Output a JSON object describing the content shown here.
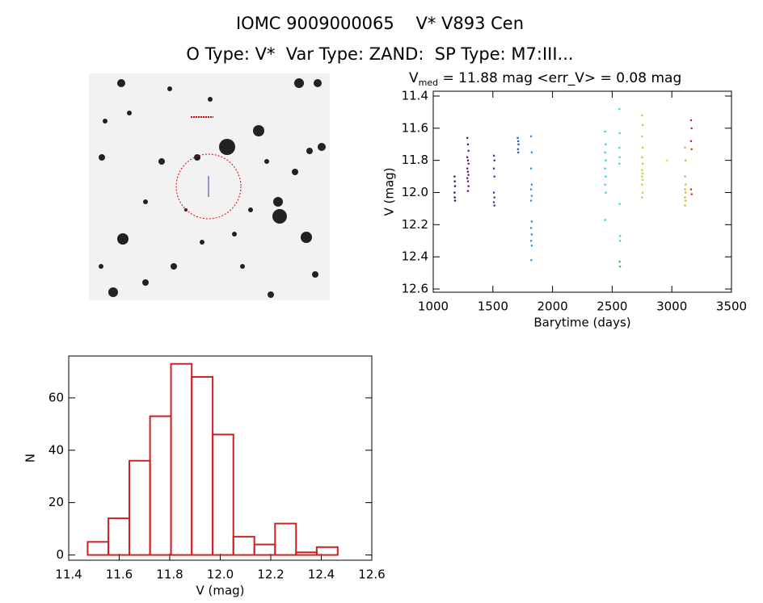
{
  "header": {
    "title": "IOMC 9009000065    V* V893 Cen",
    "subtitle": "O Type: V*  Var Type: ZAND:  SP Type: M7:III..."
  },
  "chart_data": [
    {
      "type": "scatter",
      "title": {
        "main": "V",
        "sub": "med",
        "rest": " = 11.88 mag <err_V> = 0.08 mag"
      },
      "x_label": "Barytime (days)",
      "y_label": "V (mag)",
      "xlim": [
        1000,
        3500
      ],
      "xticks": [
        1000,
        1500,
        2000,
        2500,
        3000,
        3500
      ],
      "ylim": [
        12.62,
        11.37
      ],
      "yticks": [
        11.4,
        11.6,
        11.8,
        {
          "value": 12,
          "label": "12.0"
        },
        12.2,
        12.4,
        12.6
      ],
      "series": [
        {
          "color": "#1a0a5a",
          "x": [
            1178,
            1180,
            1182,
            1178,
            1180,
            1182
          ],
          "values": [
            11.9,
            11.93,
            11.96,
            12.0,
            12.03,
            12.05
          ]
        },
        {
          "color": "#5a0a8a",
          "x": [
            1285,
            1290,
            1295,
            1285,
            1290,
            1295,
            1285,
            1290,
            1295,
            1285,
            1290,
            1295,
            1290
          ],
          "values": [
            11.66,
            11.7,
            11.74,
            11.78,
            11.8,
            11.82,
            11.85,
            11.87,
            11.89,
            11.91,
            11.93,
            11.96,
            11.99
          ]
        },
        {
          "color": "#4a1aa0",
          "x": [
            1508,
            1512,
            1508,
            1512,
            1508,
            1512,
            1508,
            1512
          ],
          "values": [
            11.77,
            11.8,
            11.85,
            11.9,
            12.0,
            12.03,
            12.06,
            12.08
          ]
        },
        {
          "color": "#1a50d0",
          "x": [
            1708,
            1712,
            1714,
            1710,
            1712
          ],
          "values": [
            11.66,
            11.68,
            11.7,
            11.73,
            11.75
          ]
        },
        {
          "color": "#1a90e0",
          "x": [
            1820,
            1825,
            1820,
            1825,
            1820,
            1825,
            1820,
            1825,
            1820,
            1825,
            1820,
            1825,
            1822
          ],
          "values": [
            11.65,
            11.75,
            11.85,
            11.95,
            11.98,
            12.02,
            12.05,
            12.18,
            12.22,
            12.26,
            12.3,
            12.33,
            12.42
          ]
        },
        {
          "color": "#20d0e0",
          "x": [
            2440,
            2445,
            2440,
            2445,
            2440,
            2445,
            2440,
            2445,
            2440
          ],
          "values": [
            11.62,
            11.7,
            11.75,
            11.8,
            11.85,
            11.9,
            11.95,
            12.0,
            12.17
          ]
        },
        {
          "color": "#20e0c0",
          "x": [
            2560,
            2562,
            2560,
            2562,
            2560,
            2562,
            2565,
            2565
          ],
          "values": [
            11.48,
            11.63,
            11.72,
            11.78,
            11.82,
            12.07,
            12.27,
            12.3
          ]
        },
        {
          "color": "#20c040",
          "x": [
            2562,
            2565
          ],
          "values": [
            12.43,
            12.46
          ]
        },
        {
          "color": "#a0e020",
          "x": [
            2750,
            2755,
            2750,
            2755,
            2750,
            2755,
            2750,
            2755,
            2750,
            2755,
            2750,
            2755,
            2750
          ],
          "values": [
            11.52,
            11.58,
            11.65,
            11.72,
            11.78,
            11.82,
            11.86,
            11.88,
            11.9,
            11.92,
            11.95,
            12.0,
            12.03
          ]
        },
        {
          "color": "#e0e020",
          "x": [
            2960
          ],
          "values": [
            11.8
          ]
        },
        {
          "color": "#f0a010",
          "x": [
            3110,
            3115,
            3110,
            3115,
            3110,
            3115,
            3110,
            3115,
            3110
          ],
          "values": [
            11.72,
            11.8,
            11.9,
            11.95,
            11.98,
            12.0,
            12.03,
            12.05,
            12.08
          ]
        },
        {
          "color": "#d02020",
          "x": [
            3160,
            3165,
            3160,
            3165,
            3160,
            3165
          ],
          "values": [
            11.55,
            11.6,
            11.68,
            11.73,
            11.98,
            12.01
          ]
        }
      ]
    },
    {
      "type": "histogram",
      "x_label": "V (mag)",
      "y_label": "N",
      "color": "#cc2222",
      "bins": [
        11.475,
        11.557,
        11.64,
        11.722,
        11.805,
        11.887,
        11.97,
        12.052,
        12.135,
        12.217,
        12.3,
        12.382,
        12.465
      ],
      "values": [
        5,
        14,
        36,
        53,
        73,
        68,
        46,
        7,
        4,
        12,
        1,
        3
      ],
      "xlim": [
        11.4,
        12.6
      ],
      "xticks": [
        11.4,
        11.6,
        11.8,
        {
          "value": 12,
          "label": "12.0"
        },
        12.2,
        12.4,
        12.6
      ],
      "ylim": [
        -2,
        76
      ],
      "yticks": [
        0,
        20,
        40,
        60
      ]
    }
  ]
}
